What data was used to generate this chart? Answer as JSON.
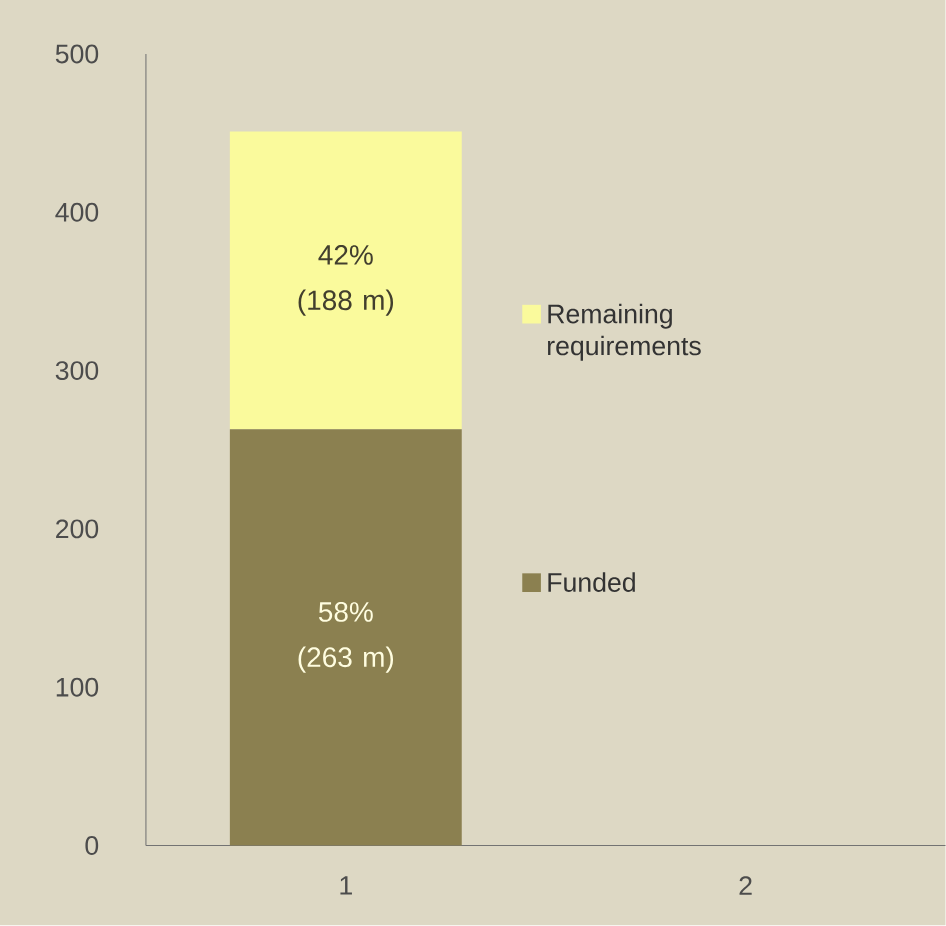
{
  "chart_data": {
    "type": "bar",
    "stacked": true,
    "categories": [
      "1",
      "2"
    ],
    "series": [
      {
        "name": "Funded",
        "color": "#8b8050",
        "values": [
          263,
          null
        ],
        "value_labels": [
          "58% (263 m)",
          null
        ]
      },
      {
        "name": "Remaining requirements",
        "color": "#fafa9c",
        "values": [
          188,
          null
        ],
        "value_labels": [
          "42% (188 m)",
          null
        ]
      }
    ],
    "ylim": [
      0,
      500
    ],
    "yticks": [
      0,
      100,
      200,
      300,
      400,
      500
    ],
    "legend": "right",
    "grid": false
  }
}
